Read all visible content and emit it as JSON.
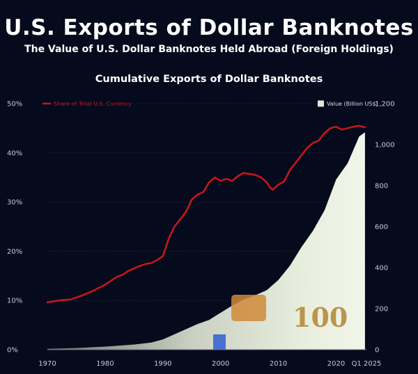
{
  "header": {
    "title": "U.S. Exports of Dollar Banknotes",
    "subtitle": "The Value of U.S. Dollar Banknotes Held Abroad (Foreign Holdings)"
  },
  "colors": {
    "background": "#050a1c",
    "share_line": "#c8141c",
    "value_area": "#dfe6da",
    "gridline": "#3a4058",
    "text": "#ffffff",
    "tick_text": "#c9ccd6"
  },
  "chart_data": {
    "type": "area+line",
    "title": "Cumulative Exports of Dollar Banknotes",
    "x_ticks": [
      "1970",
      "1980",
      "1990",
      "2000",
      "2010",
      "2020",
      "Q1 2025"
    ],
    "xlim": [
      1970,
      2025.25
    ],
    "left_axis": {
      "ticks": [
        "0%",
        "10%",
        "20%",
        "30%",
        "40%",
        "50%"
      ],
      "ylim": [
        0,
        50
      ]
    },
    "right_axis": {
      "ticks": [
        "0",
        "200",
        "400",
        "600",
        "800",
        "1,000",
        "1,200"
      ],
      "ylim": [
        0,
        1200
      ]
    },
    "grid": true,
    "series": [
      {
        "name": "Share of Total U.S. Currency",
        "axis": "left",
        "style": "line",
        "color": "#c8141c",
        "x": [
          1970,
          1972,
          1974,
          1976,
          1978,
          1980,
          1981,
          1982,
          1983,
          1984,
          1985,
          1986,
          1987,
          1988,
          1989,
          1990,
          1991,
          1992,
          1993,
          1994,
          1995,
          1996,
          1997,
          1998,
          1999,
          2000,
          2001,
          2002,
          2003,
          2004,
          2005,
          2006,
          2007,
          2008,
          2008.5,
          2009,
          2010,
          2011,
          2012,
          2013,
          2014,
          2015,
          2016,
          2017,
          2018,
          2019,
          2020,
          2021,
          2022,
          2023,
          2024,
          2025
        ],
        "values": [
          9.6,
          10.0,
          10.2,
          11.0,
          12.0,
          13.2,
          14.0,
          14.8,
          15.2,
          16.0,
          16.5,
          17.0,
          17.4,
          17.6,
          18.2,
          19.0,
          22.5,
          25.0,
          26.5,
          28.0,
          30.5,
          31.5,
          32.0,
          34.0,
          35.0,
          34.3,
          34.7,
          34.3,
          35.3,
          35.9,
          35.7,
          35.5,
          35.0,
          34.0,
          33.0,
          32.5,
          33.5,
          34.2,
          36.5,
          38.0,
          39.5,
          41.0,
          42.0,
          42.5,
          44.0,
          45.0,
          45.3,
          44.7,
          45.0,
          45.3,
          45.5,
          45.2
        ]
      },
      {
        "name": "Value (Billion US$)",
        "axis": "right",
        "style": "area",
        "color": "#dfe6da",
        "x": [
          1970,
          1975,
          1980,
          1985,
          1988,
          1990,
          1992,
          1994,
          1996,
          1998,
          2000,
          2002,
          2004,
          2006,
          2008,
          2010,
          2012,
          2014,
          2016,
          2018,
          2020,
          2022,
          2024,
          2025
        ],
        "values": [
          4,
          8,
          15,
          25,
          35,
          50,
          75,
          100,
          125,
          145,
          180,
          215,
          245,
          265,
          290,
          340,
          410,
          500,
          580,
          680,
          830,
          910,
          1040,
          1060
        ]
      }
    ],
    "legend": {
      "share_label": "Share of Total U.S. Currency",
      "value_label": "Value (Billion US$)",
      "placement": "top"
    }
  }
}
